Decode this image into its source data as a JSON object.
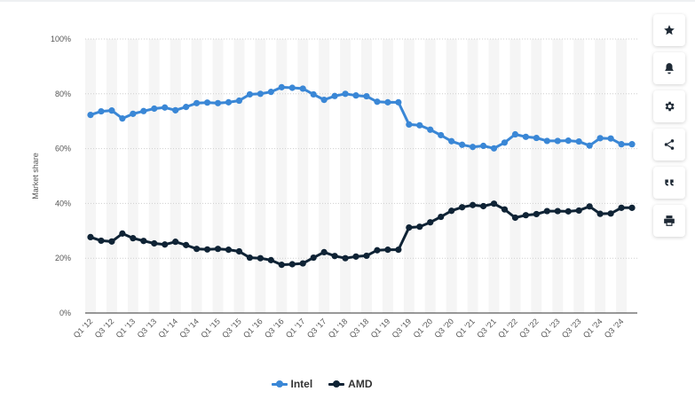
{
  "colors": {
    "intel": "#3a87d6",
    "amd": "#0f2335",
    "band": "#f5f5f5",
    "grid": "#cfcfcf"
  },
  "toolbar": [
    {
      "name": "favorite-button",
      "icon": "star-icon"
    },
    {
      "name": "notification-button",
      "icon": "bell-icon"
    },
    {
      "name": "settings-button",
      "icon": "gear-icon"
    },
    {
      "name": "share-button",
      "icon": "share-icon"
    },
    {
      "name": "cite-button",
      "icon": "quote-icon"
    },
    {
      "name": "print-button",
      "icon": "printer-icon"
    }
  ],
  "chart_data": {
    "type": "line",
    "ylabel": "Market share",
    "ylim": [
      0,
      100
    ],
    "yticks": [
      "0%",
      "20%",
      "40%",
      "60%",
      "80%",
      "100%"
    ],
    "grid": true,
    "legend_position": "bottom",
    "x": [
      "Q1 '12",
      "Q2 '12",
      "Q3 '12",
      "Q4 '12",
      "Q1 '13",
      "Q2 '13",
      "Q3 '13",
      "Q4 '13",
      "Q1 '14",
      "Q2 '14",
      "Q3 '14",
      "Q4 '14",
      "Q1 '15",
      "Q2 '15",
      "Q3 '15",
      "Q4 '15",
      "Q1 '16",
      "Q2 '16",
      "Q3 '16",
      "Q4 '16",
      "Q1 '17",
      "Q2 '17",
      "Q3 '17",
      "Q4 '17",
      "Q1 '18",
      "Q2 '18",
      "Q3 '18",
      "Q4 '18",
      "Q1 '19",
      "Q2 '19",
      "Q3 '19",
      "Q4 '19",
      "Q1 '20",
      "Q2 '20",
      "Q3 '20",
      "Q4 '20",
      "Q1 '21",
      "Q2 '21",
      "Q3 '21",
      "Q4 '21",
      "Q1 '22",
      "Q2 '22",
      "Q3 '22",
      "Q4 '22",
      "Q1 '23",
      "Q2 '23",
      "Q3 '23",
      "Q4 '23",
      "Q1 '24",
      "Q2 '24",
      "Q3 '24",
      "Q4 '24"
    ],
    "x_tick_labels": [
      "Q1 '12",
      "Q3 '12",
      "Q1 '13",
      "Q3 '13",
      "Q1 '14",
      "Q3 '14",
      "Q1 '15",
      "Q3 '15",
      "Q1 '16",
      "Q3 '16",
      "Q1 '17",
      "Q3 '17",
      "Q1 '18",
      "Q3 '18",
      "Q1 '19",
      "Q3 '19",
      "Q1 '20",
      "Q3 '20",
      "Q1 '21",
      "Q3 '21",
      "Q1 '22",
      "Q3 '22",
      "Q1 '23",
      "Q3 '23",
      "Q1 '24",
      "Q3 '24"
    ],
    "series": [
      {
        "name": "Intel",
        "values": [
          72.3,
          73.6,
          73.9,
          71,
          72.7,
          73.7,
          74.6,
          75,
          74,
          75.2,
          76.6,
          76.8,
          76.6,
          76.9,
          77.5,
          79.8,
          80,
          80.7,
          82.4,
          82.2,
          81.9,
          79.8,
          77.8,
          79.2,
          80,
          79.4,
          79.1,
          77.1,
          76.9,
          76.9,
          68.8,
          68.5,
          66.9,
          64.9,
          62.7,
          61.4,
          60.6,
          61,
          60.1,
          62.2,
          65.2,
          64.3,
          63.9,
          62.8,
          62.8,
          62.9,
          62.6,
          61.1,
          63.8,
          63.7,
          61.6,
          61.6
        ]
      },
      {
        "name": "AMD",
        "values": [
          27.7,
          26.4,
          26.1,
          29,
          27.3,
          26.3,
          25.4,
          25,
          26,
          24.8,
          23.4,
          23.2,
          23.4,
          23.1,
          22.5,
          20.2,
          20,
          19.3,
          17.6,
          17.8,
          18.1,
          20.2,
          22.2,
          20.8,
          20,
          20.6,
          20.9,
          22.9,
          23.1,
          23.1,
          31.2,
          31.5,
          33.1,
          35.1,
          37.3,
          38.6,
          39.4,
          39,
          39.9,
          37.8,
          34.8,
          35.7,
          36.1,
          37.2,
          37.2,
          37.1,
          37.4,
          38.9,
          36.2,
          36.3,
          38.4,
          38.4
        ]
      }
    ]
  }
}
